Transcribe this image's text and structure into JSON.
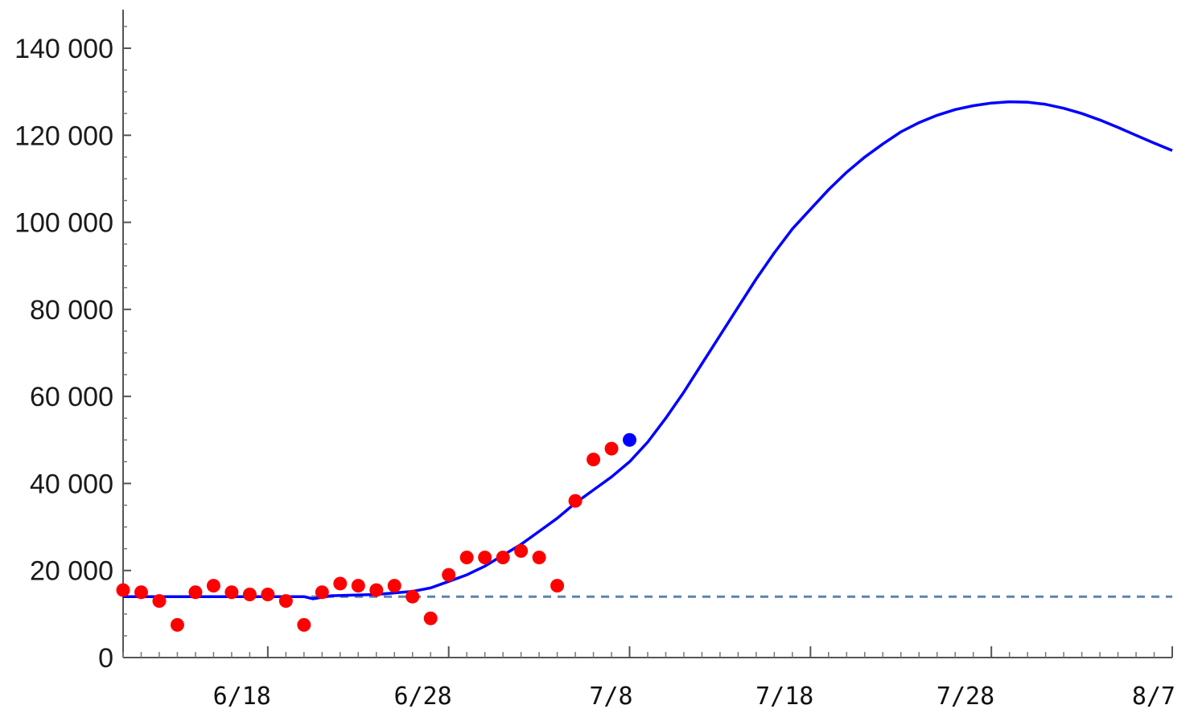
{
  "chart_data": {
    "type": "scatter",
    "title": "",
    "xlabel": "",
    "ylabel": "",
    "x_start": "6/10",
    "x_end": "8/7",
    "x_ticks": [
      {
        "day": 8,
        "label": "6/18"
      },
      {
        "day": 18,
        "label": "6/28"
      },
      {
        "day": 28,
        "label": "7/8"
      },
      {
        "day": 38,
        "label": "7/18"
      },
      {
        "day": 48,
        "label": "7/28"
      },
      {
        "day": 58,
        "label": "8/7"
      }
    ],
    "ylim": [
      0,
      150000
    ],
    "y_ticks": [
      {
        "value": 0,
        "label": "0"
      },
      {
        "value": 20000,
        "label": "20 000"
      },
      {
        "value": 40000,
        "label": "40 000"
      },
      {
        "value": 60000,
        "label": "60 000"
      },
      {
        "value": 80000,
        "label": "80 000"
      },
      {
        "value": 100000,
        "label": "100 000"
      },
      {
        "value": 120000,
        "label": "120 000"
      },
      {
        "value": 140000,
        "label": "140 000"
      }
    ],
    "grid": false,
    "baseline": {
      "value": 14000,
      "style": "dashed",
      "color": "#5b84b1"
    },
    "series": [
      {
        "kind": "points",
        "color": "#ff0000",
        "points": [
          [
            0,
            15500
          ],
          [
            1,
            15000
          ],
          [
            2,
            13000
          ],
          [
            3,
            7500
          ],
          [
            4,
            15000
          ],
          [
            5,
            16500
          ],
          [
            6,
            15000
          ],
          [
            7,
            14500
          ],
          [
            8,
            14500
          ],
          [
            9,
            13000
          ],
          [
            10,
            7500
          ],
          [
            11,
            15000
          ],
          [
            12,
            17000
          ],
          [
            13,
            16500
          ],
          [
            14,
            15500
          ],
          [
            15,
            16500
          ],
          [
            16,
            14000
          ],
          [
            17,
            9000
          ],
          [
            18,
            19000
          ],
          [
            19,
            23000
          ],
          [
            20,
            23000
          ],
          [
            21,
            23000
          ],
          [
            22,
            24500
          ],
          [
            23,
            23000
          ],
          [
            24,
            16500
          ],
          [
            25,
            36000
          ],
          [
            26,
            45500
          ],
          [
            27,
            48000
          ]
        ]
      },
      {
        "kind": "points",
        "color": "#0000ff",
        "points": [
          [
            28,
            50000
          ]
        ]
      },
      {
        "kind": "line",
        "color": "#0000ff",
        "points": [
          [
            0,
            14000
          ],
          [
            2,
            14000
          ],
          [
            4,
            14000
          ],
          [
            6,
            14000
          ],
          [
            8,
            14000
          ],
          [
            10,
            14000
          ],
          [
            10.5,
            13500
          ],
          [
            11.5,
            14200
          ],
          [
            14,
            14500
          ],
          [
            16,
            15200
          ],
          [
            17,
            16000
          ],
          [
            18,
            17500
          ],
          [
            19,
            19000
          ],
          [
            20,
            21000
          ],
          [
            21,
            23500
          ],
          [
            22,
            26000
          ],
          [
            23,
            29000
          ],
          [
            24,
            32000
          ],
          [
            25,
            35500
          ],
          [
            26,
            38500
          ],
          [
            27,
            41500
          ],
          [
            28,
            45000
          ],
          [
            29,
            49500
          ],
          [
            30,
            55000
          ],
          [
            31,
            61000
          ],
          [
            32,
            67500
          ],
          [
            33,
            74000
          ],
          [
            34,
            80500
          ],
          [
            35,
            87000
          ],
          [
            36,
            93000
          ],
          [
            37,
            98500
          ],
          [
            38,
            103000
          ],
          [
            39,
            107500
          ],
          [
            40,
            111500
          ],
          [
            41,
            115000
          ],
          [
            42,
            118000
          ],
          [
            43,
            120800
          ],
          [
            44,
            122900
          ],
          [
            45,
            124600
          ],
          [
            46,
            125900
          ],
          [
            47,
            126800
          ],
          [
            48,
            127400
          ],
          [
            49,
            127700
          ],
          [
            50,
            127600
          ],
          [
            51,
            127100
          ],
          [
            52,
            126200
          ],
          [
            53,
            125000
          ],
          [
            54,
            123500
          ],
          [
            55,
            121800
          ],
          [
            56,
            120000
          ],
          [
            57,
            118200
          ],
          [
            58,
            116500
          ]
        ]
      }
    ]
  }
}
